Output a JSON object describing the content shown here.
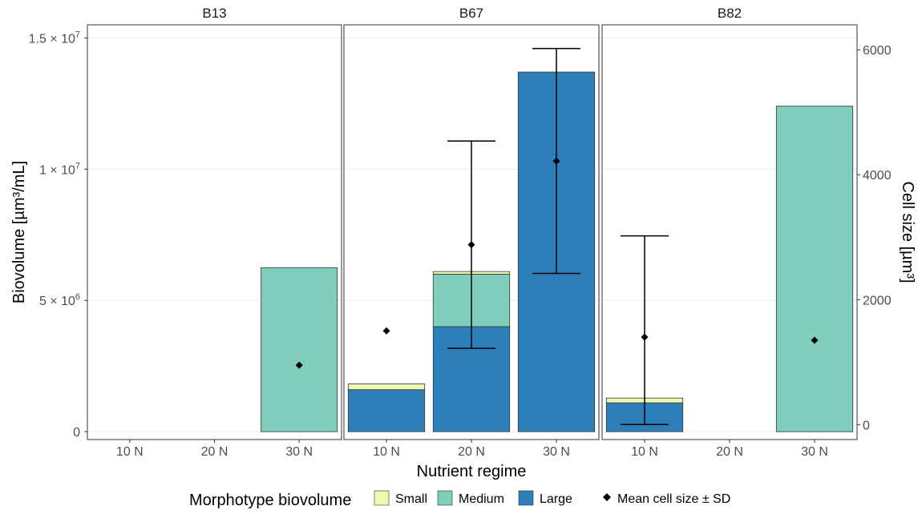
{
  "chart_data": {
    "type": "bar",
    "stacked": true,
    "facets": [
      "B13",
      "B67",
      "B82"
    ],
    "categories": [
      "10 N",
      "20 N",
      "30 N"
    ],
    "xlabel": "Nutrient regime",
    "ylabel": "Biovolume [µm³/mL]",
    "y2label": "Cell size [µm³]",
    "ylim": [
      -300000,
      15500000
    ],
    "y2lim": [
      -240,
      6400
    ],
    "y_ticks": [
      {
        "value": 0,
        "mant": "0",
        "exp": ""
      },
      {
        "value": 5000000,
        "mant": "5 × 10",
        "exp": "6"
      },
      {
        "value": 10000000,
        "mant": "1 × 10",
        "exp": "7"
      },
      {
        "value": 15000000,
        "mant": "1.5 × 10",
        "exp": "7"
      }
    ],
    "y2_ticks": [
      0,
      2000,
      4000,
      6000
    ],
    "grid": true,
    "series": [
      {
        "name": "Large",
        "color": "#2c7fb8",
        "values": {
          "B13": [
            0,
            0,
            0
          ],
          "B67": [
            1600000,
            4000000,
            13700000
          ],
          "B82": [
            1100000,
            0,
            0
          ]
        }
      },
      {
        "name": "Medium",
        "color": "#7fcdbb",
        "values": {
          "B13": [
            0,
            0,
            6250000
          ],
          "B67": [
            0,
            2000000,
            0
          ],
          "B82": [
            0,
            0,
            12400000
          ]
        }
      },
      {
        "name": "Small",
        "color": "#edf8b1",
        "values": {
          "B13": [
            0,
            0,
            0
          ],
          "B67": [
            220000,
            100000,
            0
          ],
          "B82": [
            180000,
            0,
            0
          ]
        }
      }
    ],
    "cell_size": {
      "name": "Mean cell size ± SD",
      "points": [
        {
          "facet": "B13",
          "category": "30 N",
          "mean": 950,
          "sd": null
        },
        {
          "facet": "B67",
          "category": "10 N",
          "mean": 1500,
          "sd": null
        },
        {
          "facet": "B67",
          "category": "20 N",
          "mean": 2880,
          "sd": 1660
        },
        {
          "facet": "B67",
          "category": "30 N",
          "mean": 4220,
          "sd": 1800
        },
        {
          "facet": "B82",
          "category": "10 N",
          "mean": 1400,
          "sd": 1620
        },
        {
          "facet": "B82",
          "category": "30 N",
          "mean": 1350,
          "sd": null
        }
      ]
    },
    "legend": {
      "position": "bottom",
      "fill_title": "Morphotype biovolume",
      "fill_items": [
        "Small",
        "Medium",
        "Large"
      ],
      "point_item": "Mean cell size ± SD"
    }
  }
}
